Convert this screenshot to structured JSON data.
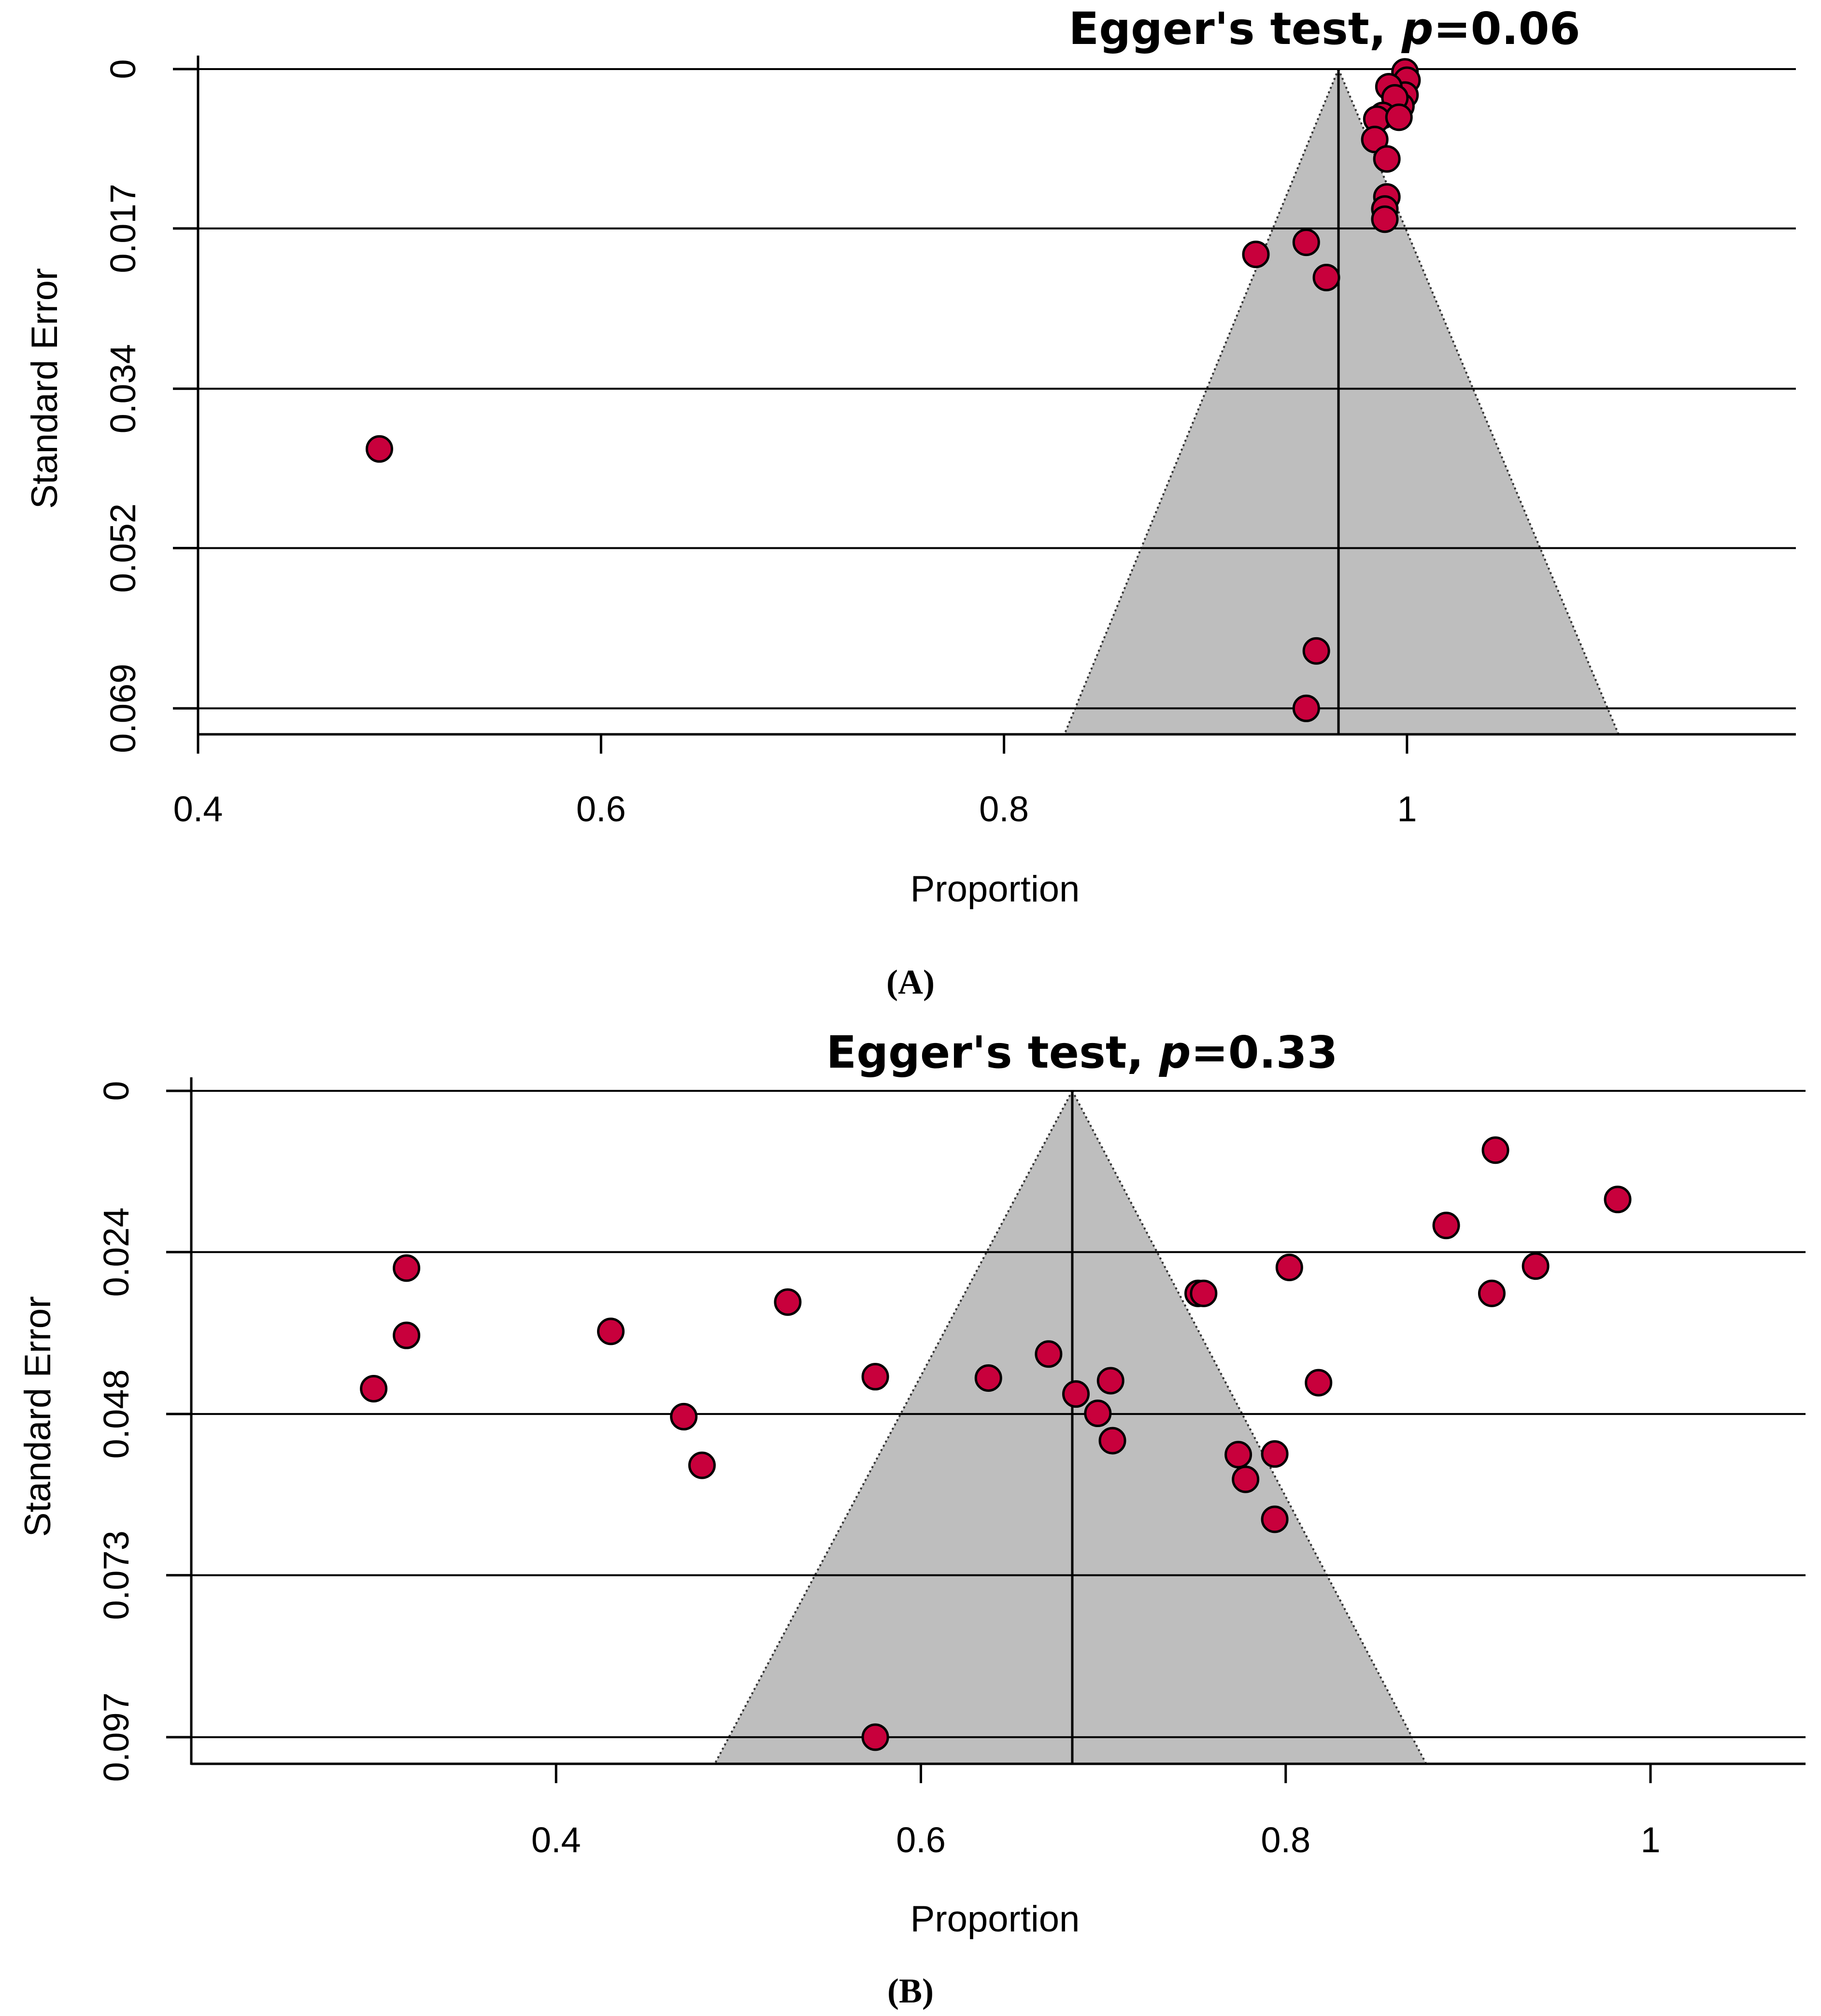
{
  "colors": {
    "point_fill": "#c8003c",
    "point_stroke": "#000000",
    "funnel_fill": "#bebebe",
    "line": "#000000"
  },
  "chart_data": [
    {
      "type": "scatter",
      "title_prefix": "Egger's test, ",
      "title_p": "p",
      "title_suffix": "=0.06",
      "xlabel": "Proportion",
      "ylabel": "Standard Error",
      "panel_label": "(A)",
      "xlim": [
        0.4,
        1.193
      ],
      "ylim": [
        0,
        0.0718
      ],
      "y_reversed": true,
      "x_ticks": [
        0.4,
        0.6,
        0.8,
        1.0
      ],
      "x_tick_labels": [
        "0.4",
        "0.6",
        "0.8",
        "1"
      ],
      "y_ticks": [
        0,
        0.0172,
        0.0345,
        0.0517,
        0.069
      ],
      "y_tick_labels": [
        "0",
        "0.017",
        "0.034",
        "0.052",
        "0.069"
      ],
      "grid": "horizontal",
      "pooled_estimate": 0.966,
      "funnel": {
        "apex_se": 0,
        "se_max": 0.0718,
        "left_at_max": 0.83,
        "right_at_max": 1.105
      },
      "points": [
        [
          0.999,
          0.0003
        ],
        [
          1.0,
          0.0012
        ],
        [
          0.999,
          0.0028
        ],
        [
          0.991,
          0.0019
        ],
        [
          0.997,
          0.004
        ],
        [
          0.994,
          0.0031
        ],
        [
          0.988,
          0.005
        ],
        [
          0.985,
          0.0054
        ],
        [
          0.996,
          0.0052
        ],
        [
          0.984,
          0.0076
        ],
        [
          0.99,
          0.0097
        ],
        [
          0.99,
          0.0138
        ],
        [
          0.989,
          0.0151
        ],
        [
          0.989,
          0.0162
        ],
        [
          0.95,
          0.0187
        ],
        [
          0.925,
          0.02
        ],
        [
          0.96,
          0.0225
        ],
        [
          0.49,
          0.041
        ],
        [
          0.955,
          0.0628
        ],
        [
          0.95,
          0.069
        ]
      ]
    },
    {
      "type": "scatter",
      "title_prefix": "Egger's test, ",
      "title_p": "p",
      "title_suffix": "=0.33",
      "xlabel": "Proportion",
      "ylabel": "Standard Error",
      "panel_label": "(B)",
      "xlim": [
        0.2,
        1.085
      ],
      "ylim": [
        0,
        0.101
      ],
      "y_reversed": true,
      "x_ticks": [
        0.4,
        0.6,
        0.8,
        1.0
      ],
      "x_tick_labels": [
        "0.4",
        "0.6",
        "0.8",
        "1"
      ],
      "y_ticks": [
        0,
        0.0242,
        0.0485,
        0.0727,
        0.097
      ],
      "y_tick_labels": [
        "0",
        "0.024",
        "0.048",
        "0.073",
        "0.097"
      ],
      "grid": "horizontal",
      "pooled_estimate": 0.683,
      "funnel": {
        "apex_se": 0,
        "se_max": 0.101,
        "left_at_max": 0.487,
        "right_at_max": 0.877
      },
      "points": [
        [
          0.915,
          0.0089
        ],
        [
          0.982,
          0.0163
        ],
        [
          0.888,
          0.0202
        ],
        [
          0.318,
          0.0266
        ],
        [
          0.802,
          0.0265
        ],
        [
          0.937,
          0.0263
        ],
        [
          0.913,
          0.0304
        ],
        [
          0.752,
          0.0304
        ],
        [
          0.755,
          0.0304
        ],
        [
          0.527,
          0.0317
        ],
        [
          0.318,
          0.0367
        ],
        [
          0.43,
          0.0361
        ],
        [
          0.67,
          0.0395
        ],
        [
          0.575,
          0.0429
        ],
        [
          0.637,
          0.0431
        ],
        [
          0.704,
          0.0435
        ],
        [
          0.818,
          0.0438
        ],
        [
          0.3,
          0.0447
        ],
        [
          0.685,
          0.0455
        ],
        [
          0.697,
          0.0484
        ],
        [
          0.47,
          0.0489
        ],
        [
          0.705,
          0.0525
        ],
        [
          0.774,
          0.0546
        ],
        [
          0.794,
          0.0545
        ],
        [
          0.778,
          0.0583
        ],
        [
          0.48,
          0.0562
        ],
        [
          0.794,
          0.0643
        ],
        [
          0.575,
          0.097
        ]
      ]
    }
  ]
}
